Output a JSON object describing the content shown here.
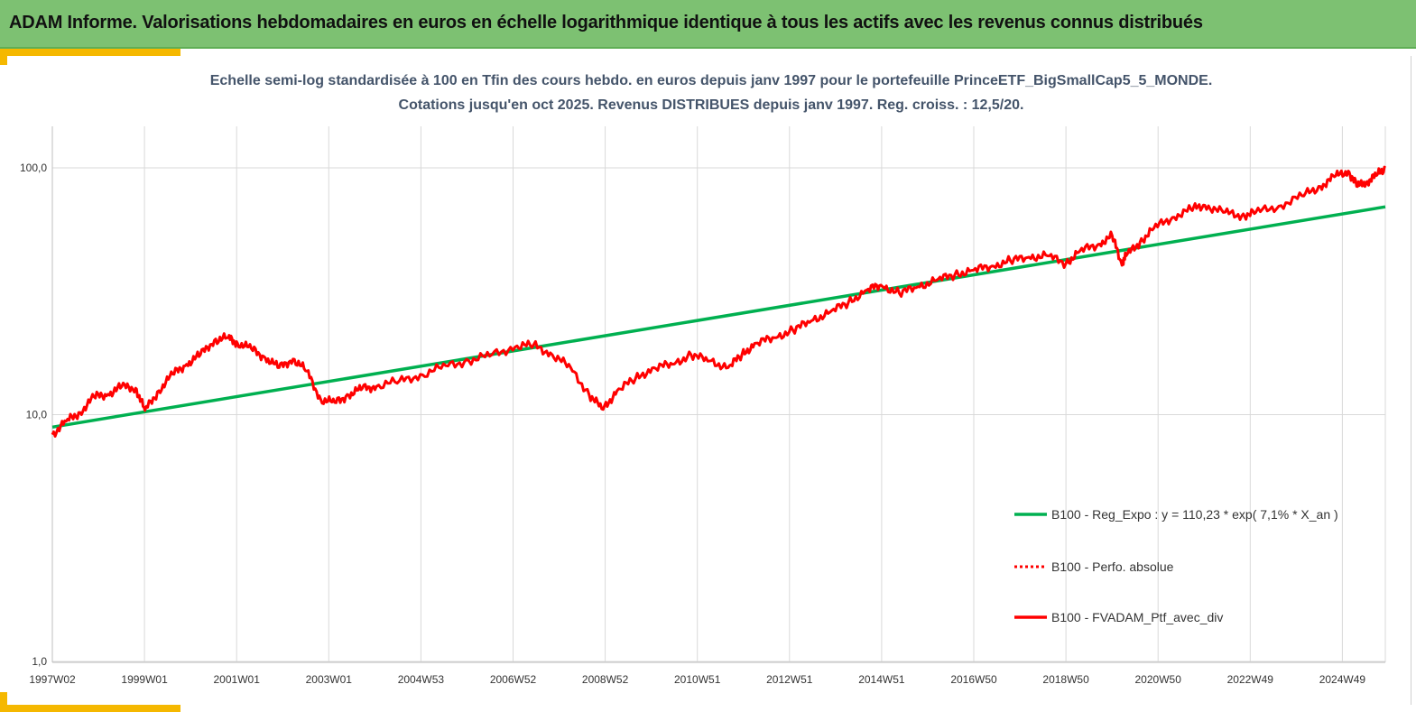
{
  "banner": {
    "title": "ADAM Informe. Valorisations hebdomadaires en euros en échelle logarithmique identique à tous les actifs avec les revenus connus distribués"
  },
  "colors": {
    "banner_bg": "#7dc172",
    "accent": "#f5b800",
    "regression": "#00b050",
    "portfolio": "#ff0000",
    "subtitle_text": "#44546a"
  },
  "chart_data": {
    "type": "line",
    "subtitle_line1": "Echelle semi-log standardisée  à 100 en Tfin des cours hebdo.  en euros depuis janv 1997 pour le portefeuille PrinceETF_BigSmallCap5_5_MONDE.",
    "subtitle_line2": "Cotations  jusqu'en oct 2025. Revenus DISTRIBUES depuis janv 1997. Reg. croiss. : 12,5/20.",
    "y_scale": "log",
    "ylim": [
      1,
      100
    ],
    "y_ticks": [
      "1,0",
      "10,0",
      "100,0"
    ],
    "x_range": [
      1997.0,
      2025.8
    ],
    "x_ticks": [
      "1997W02",
      "1999W01",
      "2001W01",
      "2003W01",
      "2004W53",
      "2006W52",
      "2008W52",
      "2010W51",
      "2012W51",
      "2014W51",
      "2016W50",
      "2018W50",
      "2020W50",
      "2022W49",
      "2024W49"
    ],
    "grid": "vertical",
    "legend_position": "lower-right",
    "series": [
      {
        "name": "B100 - Reg_Expo : y = 110,23 * exp( 7,1% *  X_an )",
        "style": "solid-green",
        "x": [
          1997.0,
          2025.8
        ],
        "y": [
          8.9,
          69.5
        ]
      },
      {
        "name": "B100 - Perfo. absolue",
        "style": "dotted-red",
        "x": [],
        "y": []
      },
      {
        "name": "B100 - FVADAM_Ptf_avec_div",
        "style": "solid-red",
        "x": [
          1997.0,
          1997.3,
          1997.6,
          1997.9,
          1998.2,
          1998.5,
          1998.8,
          1999.0,
          1999.3,
          1999.6,
          1999.9,
          2000.2,
          2000.5,
          2000.8,
          2001.0,
          2001.3,
          2001.6,
          2001.9,
          2002.2,
          2002.5,
          2002.8,
          2003.1,
          2003.4,
          2003.7,
          2004.0,
          2004.5,
          2005.0,
          2005.5,
          2006.0,
          2006.5,
          2007.0,
          2007.4,
          2007.8,
          2008.2,
          2008.6,
          2008.9,
          2009.2,
          2009.6,
          2010.0,
          2010.4,
          2010.8,
          2011.2,
          2011.6,
          2011.9,
          2012.2,
          2012.6,
          2013.0,
          2013.4,
          2013.8,
          2014.2,
          2014.6,
          2014.9,
          2015.3,
          2015.7,
          2016.1,
          2016.5,
          2016.9,
          2017.3,
          2017.7,
          2018.1,
          2018.5,
          2018.9,
          2019.2,
          2019.6,
          2019.9,
          2020.1,
          2020.2,
          2020.5,
          2020.8,
          2021.2,
          2021.6,
          2021.9,
          2022.3,
          2022.7,
          2023.0,
          2023.5,
          2024.0,
          2024.4,
          2024.7,
          2025.0,
          2025.2,
          2025.4,
          2025.6,
          2025.8
        ],
        "y": [
          8.3,
          9.4,
          10.2,
          11.8,
          12.1,
          13.0,
          12.8,
          10.4,
          12.5,
          14.6,
          16.0,
          17.5,
          20.0,
          20.5,
          19.5,
          18.5,
          17.0,
          15.5,
          16.8,
          15.0,
          11.5,
          11.2,
          12.0,
          12.8,
          13.0,
          13.7,
          14.5,
          15.8,
          16.5,
          17.5,
          18.8,
          19.2,
          17.5,
          15.5,
          12.0,
          10.5,
          12.5,
          14.0,
          15.5,
          16.0,
          17.5,
          16.5,
          15.5,
          17.5,
          19.5,
          20.5,
          22.0,
          24.0,
          26.0,
          28.5,
          32.0,
          33.5,
          31.0,
          33.0,
          35.0,
          37.0,
          38.5,
          40.0,
          42.0,
          43.5,
          44.0,
          41.0,
          46.0,
          49.0,
          53.0,
          41.0,
          44.0,
          50.0,
          57.0,
          63.0,
          68.0,
          70.5,
          66.0,
          64.0,
          66.0,
          70.0,
          77.0,
          84.0,
          92.0,
          97.0,
          84.0,
          88.0,
          93.0,
          100.0
        ]
      }
    ]
  }
}
